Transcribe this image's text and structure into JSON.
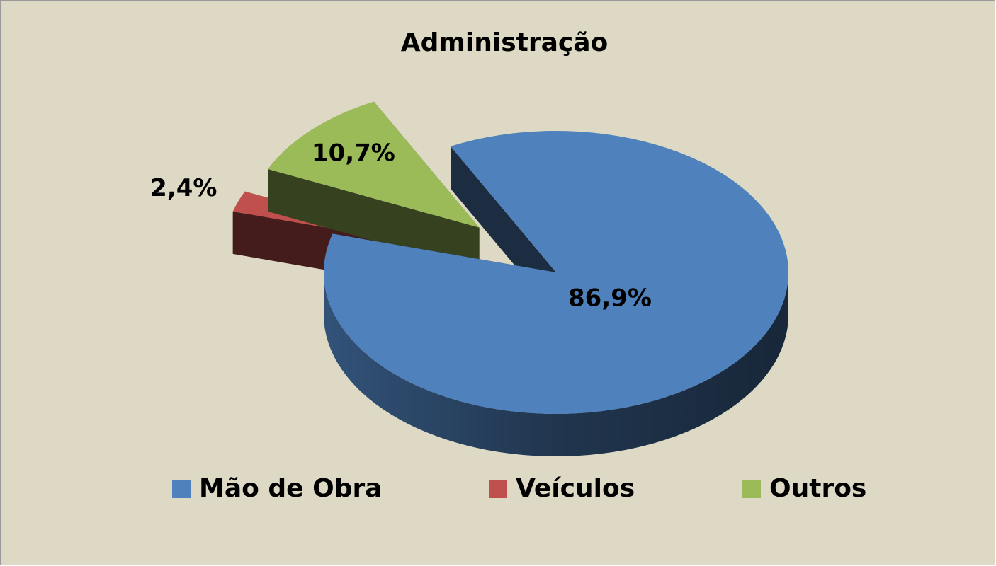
{
  "chart_data": {
    "type": "pie",
    "title": "Administração",
    "categories": [
      "Mão de Obra",
      "Veículos",
      "Outros"
    ],
    "values": [
      86.9,
      2.4,
      10.7
    ],
    "value_labels": [
      "86,9%",
      "2,4%",
      "10,7%"
    ],
    "colors": [
      "#4f81bd",
      "#c0504d",
      "#9bbb59"
    ],
    "legend": "bottom"
  }
}
